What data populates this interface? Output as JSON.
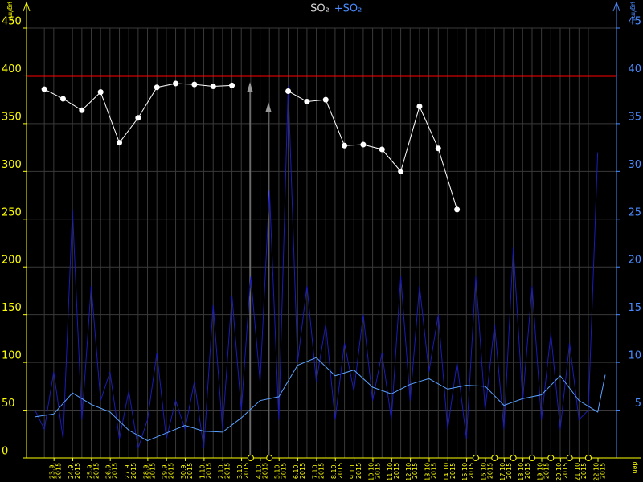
{
  "chart_data": {
    "type": "line",
    "title": "SO₂",
    "subtitle": "+SO₂",
    "y_unit": "µg/m³",
    "y2_unit": "µg/m³",
    "x_label": "den",
    "x_year": "2015",
    "categories": [
      "23.9.",
      "24.9.",
      "25.9.",
      "26.9.",
      "27.9.",
      "28.9.",
      "29.9.",
      "30.9.",
      "1.10.",
      "2.10.",
      "3.10.",
      "4.10.",
      "5.10.",
      "6.10.",
      "7.10.",
      "8.10.",
      "9.10.",
      "10.10.",
      "11.10.",
      "12.10.",
      "13.10.",
      "14.10.",
      "15.10.",
      "16.10.",
      "17.10.",
      "18.10.",
      "19.10.",
      "20.10.",
      "21.10.",
      "22.10."
    ],
    "xlim": [
      -0.95,
      30.5
    ],
    "ylim": [
      0,
      450
    ],
    "yticks": [
      0,
      50,
      100,
      150,
      200,
      250,
      300,
      350,
      400,
      450
    ],
    "y2lim": [
      0,
      45
    ],
    "y2ticks": [
      5,
      10,
      15,
      20,
      25,
      30,
      35,
      40,
      45
    ],
    "grid": true,
    "limit": {
      "value": 400,
      "color": "#ff0000"
    },
    "series": [
      {
        "kind": "hourly",
        "axis": "y2",
        "color": "#1c1cb4",
        "x": [
          -0.5,
          0,
          0.5,
          1,
          1.5,
          2,
          2.5,
          3,
          3.5,
          4,
          4.5,
          5,
          5.5,
          6,
          6.5,
          7,
          7.5,
          8,
          8.5,
          9,
          9.5,
          10,
          10.5,
          11,
          11.5,
          12,
          12.5,
          13,
          13.5,
          14,
          14.5,
          15,
          15.5,
          16,
          16.5,
          17,
          17.5,
          18,
          18.5,
          19,
          19.5,
          20,
          20.5,
          21,
          21.5,
          22,
          22.5,
          23,
          23.5,
          24,
          24.5,
          25,
          25.5,
          26,
          26.5,
          27,
          27.5,
          28,
          28.5,
          29,
          29.5
        ],
        "values": [
          5,
          3,
          9,
          2,
          26,
          4,
          18,
          6,
          9,
          2,
          7,
          1,
          4,
          11,
          2,
          6,
          3,
          8,
          1,
          16,
          3,
          17,
          5,
          19,
          8,
          28,
          4,
          39,
          10,
          18,
          8,
          14,
          4,
          12,
          7,
          15,
          6,
          11,
          4,
          19,
          6,
          18,
          9,
          15,
          3,
          10,
          2,
          19,
          5,
          14,
          3,
          22,
          6,
          18,
          4,
          13,
          3,
          12,
          4,
          5,
          32
        ]
      },
      {
        "kind": "average",
        "axis": "y2",
        "color": "#5aa0ff",
        "x": [
          -0.5,
          0.5,
          1.5,
          2.5,
          3.5,
          4.5,
          5.5,
          6.5,
          7.5,
          8.5,
          9.5,
          10.5,
          11.5,
          12.5,
          13.5,
          14.5,
          15.5,
          16.5,
          17.5,
          18.5,
          19.5,
          20.5,
          21.5,
          22.5,
          23.5,
          24.5,
          25.5,
          26.5,
          27.5,
          28.5,
          29.5,
          29.9
        ],
        "values": [
          4.3,
          4.6,
          6.8,
          5.6,
          4.8,
          2.9,
          1.8,
          2.6,
          3.4,
          2.8,
          2.7,
          4.2,
          6.0,
          6.4,
          9.7,
          10.5,
          8.6,
          9.2,
          7.4,
          6.7,
          7.7,
          8.3,
          7.2,
          7.6,
          7.5,
          5.5,
          6.2,
          6.6,
          8.6,
          6.0,
          4.8,
          8.7
        ]
      },
      {
        "kind": "daily",
        "axis": "y",
        "color": "#ffffff",
        "values": [
          386,
          376,
          364,
          383,
          330,
          356,
          388,
          392,
          391,
          389,
          390,
          null,
          null,
          384,
          373,
          375,
          327,
          328,
          323,
          300,
          368,
          324,
          260,
          null,
          null,
          null,
          null,
          null,
          null,
          null
        ]
      }
    ]
  }
}
